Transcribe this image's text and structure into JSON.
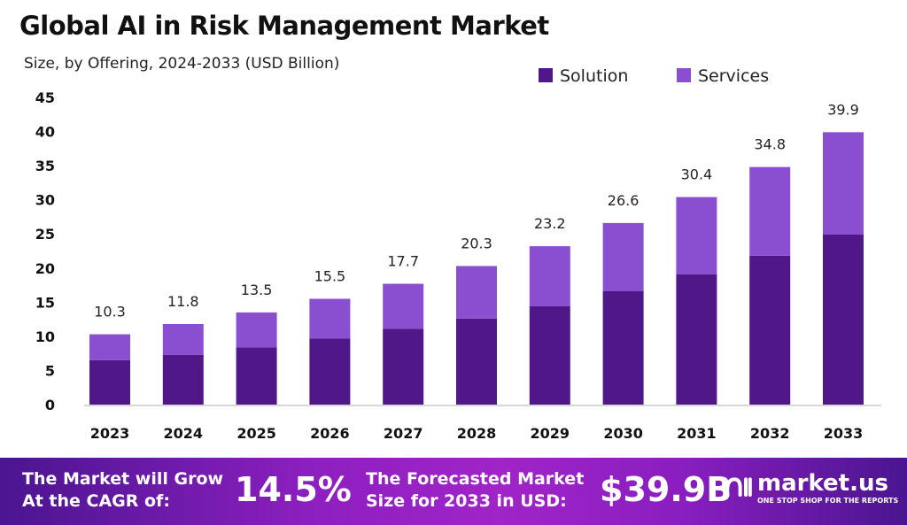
{
  "chart_data": {
    "type": "bar",
    "stacked": true,
    "title": "Global AI in Risk Management Market",
    "subtitle": "Size, by Offering, 2024-2033 (USD Billion)",
    "categories": [
      "2023",
      "2024",
      "2025",
      "2026",
      "2027",
      "2028",
      "2029",
      "2030",
      "2031",
      "2032",
      "2033"
    ],
    "series": [
      {
        "name": "Solution",
        "color": "#4f1787",
        "values": [
          6.5,
          7.3,
          8.4,
          9.7,
          11.1,
          12.6,
          14.4,
          16.6,
          19.1,
          21.8,
          24.9
        ]
      },
      {
        "name": "Services",
        "color": "#8a4fd0",
        "values": [
          3.8,
          4.5,
          5.1,
          5.8,
          6.6,
          7.7,
          8.8,
          10.0,
          11.3,
          13.0,
          15.0
        ]
      }
    ],
    "totals": [
      "10.3",
      "11.8",
      "13.5",
      "15.5",
      "17.7",
      "20.3",
      "23.2",
      "26.6",
      "30.4",
      "34.8",
      "39.9"
    ],
    "yticks": [
      0,
      5,
      10,
      15,
      20,
      25,
      30,
      35,
      40,
      45
    ],
    "ylim": [
      0,
      45
    ],
    "grid": false,
    "legend_position": "top-right"
  },
  "banner": {
    "cagr_label_1": "The Market will Grow",
    "cagr_label_2": "At the CAGR of:",
    "cagr_value": "14.5%",
    "forecast_label_1": "The Forecasted Market",
    "forecast_label_2": "Size for 2033 in USD:",
    "forecast_value": "$39.9B",
    "logo_text": "market.us",
    "logo_tagline": "ONE STOP SHOP FOR THE REPORTS"
  }
}
